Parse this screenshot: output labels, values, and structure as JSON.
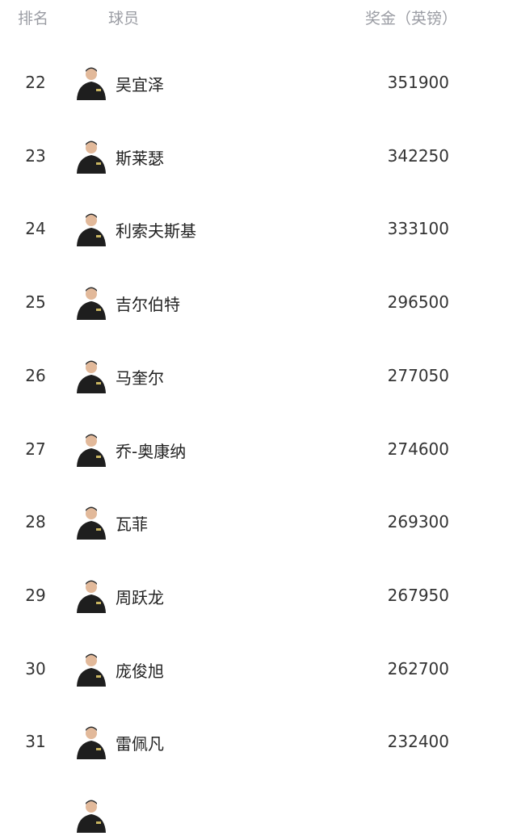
{
  "header": {
    "rank": "排名",
    "player": "球员",
    "prize": "奖金（英镑）"
  },
  "rows": [
    {
      "rank": "22",
      "name": "吴宜泽",
      "prize": "351900"
    },
    {
      "rank": "23",
      "name": "斯莱瑟",
      "prize": "342250"
    },
    {
      "rank": "24",
      "name": "利索夫斯基",
      "prize": "333100"
    },
    {
      "rank": "25",
      "name": "吉尔伯特",
      "prize": "296500"
    },
    {
      "rank": "26",
      "name": "马奎尔",
      "prize": "277050"
    },
    {
      "rank": "27",
      "name": "乔-奥康纳",
      "prize": "274600"
    },
    {
      "rank": "28",
      "name": "瓦菲",
      "prize": "269300"
    },
    {
      "rank": "29",
      "name": "周跃龙",
      "prize": "267950"
    },
    {
      "rank": "30",
      "name": "庞俊旭",
      "prize": "262700"
    },
    {
      "rank": "31",
      "name": "雷佩凡",
      "prize": "232400"
    }
  ]
}
